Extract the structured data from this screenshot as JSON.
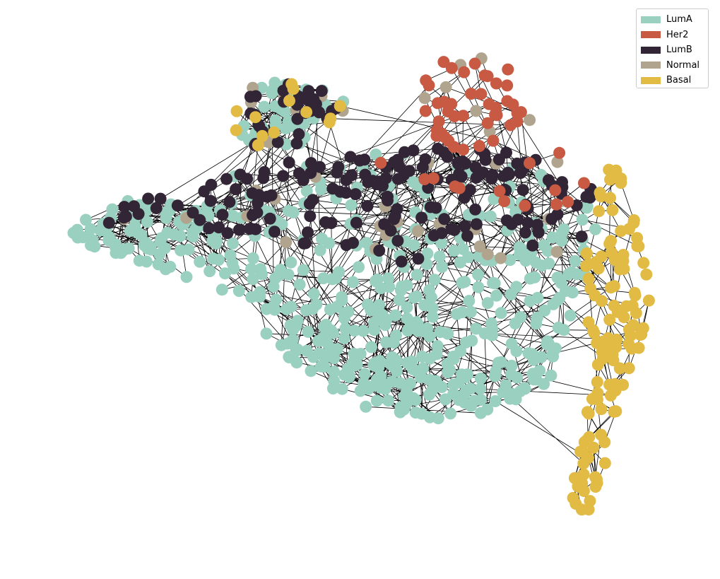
{
  "legend": {
    "entries": [
      {
        "label": "LumA",
        "color": "#9ad0bf"
      },
      {
        "label": "Her2",
        "color": "#c85a44"
      },
      {
        "label": "LumB",
        "color": "#312536"
      },
      {
        "label": "Normal",
        "color": "#b0a48f"
      },
      {
        "label": "Basal",
        "color": "#e2bb44"
      }
    ]
  },
  "graph": {
    "edge_color": "#000000",
    "groups": [
      {
        "label": "LumA",
        "color": "#9ad0bf",
        "count": 560
      },
      {
        "label": "LumB",
        "color": "#312536",
        "count": 200
      },
      {
        "label": "Her2",
        "color": "#c85a44",
        "count": 55
      },
      {
        "label": "Normal",
        "color": "#b0a48f",
        "count": 40
      },
      {
        "label": "Basal",
        "color": "#e2bb44",
        "count": 130
      }
    ]
  }
}
